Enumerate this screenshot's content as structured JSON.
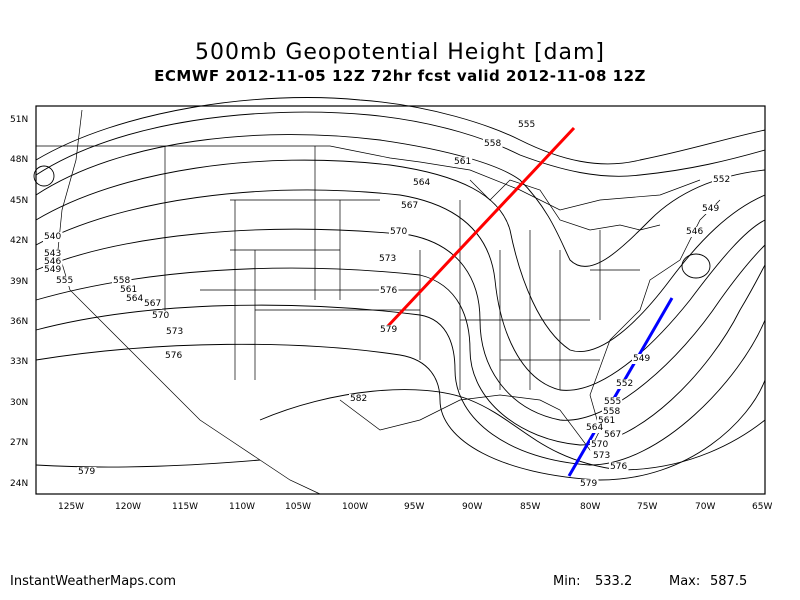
{
  "title": "500mb Geopotential Height [dam]",
  "subtitle": "ECMWF 2012-11-05 12Z 72hr fcst valid 2012-11-08 12Z",
  "footer": {
    "site": "InstantWeatherMaps.com",
    "min_label": "Min:",
    "min_value": "533.2",
    "max_label": "Max:",
    "max_value": "587.5"
  },
  "lat_labels": [
    "51N",
    "48N",
    "45N",
    "42N",
    "39N",
    "36N",
    "33N",
    "30N",
    "27N",
    "24N"
  ],
  "lon_labels": [
    "125W",
    "120W",
    "115W",
    "110W",
    "105W",
    "100W",
    "95W",
    "90W",
    "85W",
    "80W",
    "75W",
    "70W",
    "65W"
  ],
  "contour_labels": [
    "555",
    "558",
    "561",
    "564",
    "567",
    "570",
    "573",
    "576",
    "579",
    "582",
    "552",
    "549",
    "546",
    "540",
    "543",
    "546",
    "549",
    "555",
    "558",
    "561",
    "564",
    "567",
    "570",
    "573",
    "576",
    "579",
    "549",
    "552",
    "555",
    "558",
    "561",
    "564",
    "567",
    "570",
    "573",
    "576",
    "579"
  ],
  "colors": {
    "ridge_line": "#ff0000",
    "trough_line": "#0000ff"
  }
}
